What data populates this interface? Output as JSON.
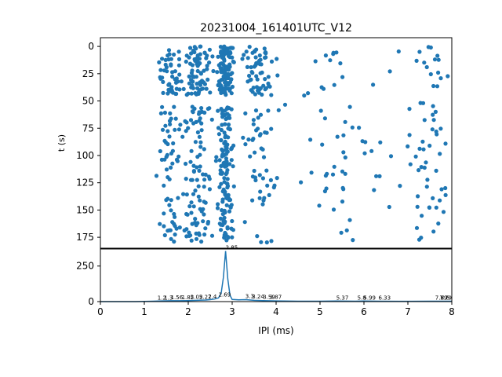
{
  "title": "20231004_161401UTC_V12",
  "colors": {
    "series": "#1f77b4",
    "axis": "#000000",
    "background": "#ffffff"
  },
  "chart_data": [
    {
      "type": "scatter",
      "panel": "top",
      "title": "20231004_161401UTC_V12",
      "xlabel": "",
      "ylabel": "t (s)",
      "xlim": [
        0,
        8
      ],
      "ylim": [
        185,
        -8
      ],
      "y_inverted": true,
      "yticks": [
        0,
        25,
        50,
        75,
        100,
        125,
        150,
        175
      ],
      "xticks_labels_visible": false,
      "grid": false,
      "legend": "none",
      "clusters": [
        {
          "x_center": 2.85,
          "x_spread": 0.18,
          "t_ranges": [
            [
              0,
              45
            ],
            [
              55,
              180
            ]
          ],
          "density": "very high"
        },
        {
          "x_center": 2.2,
          "x_spread": 0.35,
          "t_ranges": [
            [
              0,
              45
            ],
            [
              55,
              180
            ]
          ],
          "density": "high"
        },
        {
          "x_center": 1.6,
          "x_spread": 0.3,
          "t_ranges": [
            [
              0,
              45
            ],
            [
              55,
              180
            ]
          ],
          "density": "medium"
        },
        {
          "x_center": 3.6,
          "x_spread": 0.4,
          "t_ranges": [
            [
              0,
              45
            ],
            [
              55,
              180
            ]
          ],
          "density": "medium"
        },
        {
          "x_center": 5.6,
          "x_spread": 1.2,
          "t_ranges": [
            [
              0,
              180
            ]
          ],
          "density": "low"
        },
        {
          "x_center": 7.5,
          "x_spread": 0.5,
          "t_ranges": [
            [
              0,
              180
            ]
          ],
          "density": "low"
        }
      ]
    },
    {
      "type": "line",
      "panel": "bottom",
      "xlabel": "IPI (ms)",
      "ylabel": "",
      "xlim": [
        0,
        8
      ],
      "ylim": [
        0,
        370
      ],
      "xticks": [
        0,
        1,
        2,
        3,
        4,
        5,
        6,
        7,
        8
      ],
      "yticks": [
        0,
        250
      ],
      "grid": false,
      "legend": "none",
      "x": [
        0,
        0.8,
        1.0,
        1.2,
        1.4,
        1.6,
        1.8,
        2.0,
        2.2,
        2.4,
        2.5,
        2.6,
        2.69,
        2.75,
        2.8,
        2.85,
        2.9,
        2.95,
        3.0,
        3.15,
        3.3,
        3.5,
        3.7,
        4.0,
        4.5,
        5.0,
        5.37,
        5.8,
        5.99,
        6.33,
        7.0,
        7.5,
        7.8,
        8.0
      ],
      "y": [
        0,
        0,
        1,
        3,
        5,
        6,
        6,
        7,
        9,
        11,
        14,
        18,
        26,
        60,
        170,
        355,
        160,
        45,
        15,
        12,
        14,
        9,
        7,
        5,
        3,
        3,
        4,
        3,
        4,
        3,
        2,
        3,
        3,
        3
      ],
      "peak_labels": [
        {
          "x": 2.85,
          "y": 355,
          "text": "2.85"
        },
        {
          "x": 2.69,
          "y": 26,
          "text": "2.69"
        },
        {
          "x": 1.3,
          "y": 4,
          "text": "1.2"
        },
        {
          "x": 1.45,
          "y": 4,
          "text": "1.3"
        },
        {
          "x": 1.6,
          "y": 6,
          "text": "1.56"
        },
        {
          "x": 1.85,
          "y": 6,
          "text": "1.85"
        },
        {
          "x": 2.05,
          "y": 7,
          "text": "2.05"
        },
        {
          "x": 2.25,
          "y": 9,
          "text": "2.27"
        },
        {
          "x": 2.45,
          "y": 11,
          "text": "2.4"
        },
        {
          "x": 3.3,
          "y": 14,
          "text": "3.3"
        },
        {
          "x": 3.45,
          "y": 12,
          "text": "3.24"
        },
        {
          "x": 3.7,
          "y": 7,
          "text": "3.59"
        },
        {
          "x": 3.85,
          "y": 7,
          "text": "3.87"
        },
        {
          "x": 5.37,
          "y": 4,
          "text": "5.37"
        },
        {
          "x": 5.85,
          "y": 4,
          "text": "5.8"
        },
        {
          "x": 5.99,
          "y": 4,
          "text": "5.99"
        },
        {
          "x": 6.33,
          "y": 3,
          "text": "6.33"
        },
        {
          "x": 7.75,
          "y": 3,
          "text": "7.6"
        },
        {
          "x": 7.9,
          "y": 3,
          "text": "7.69"
        },
        {
          "x": 8.0,
          "y": 3,
          "text": "7.79"
        }
      ]
    }
  ]
}
